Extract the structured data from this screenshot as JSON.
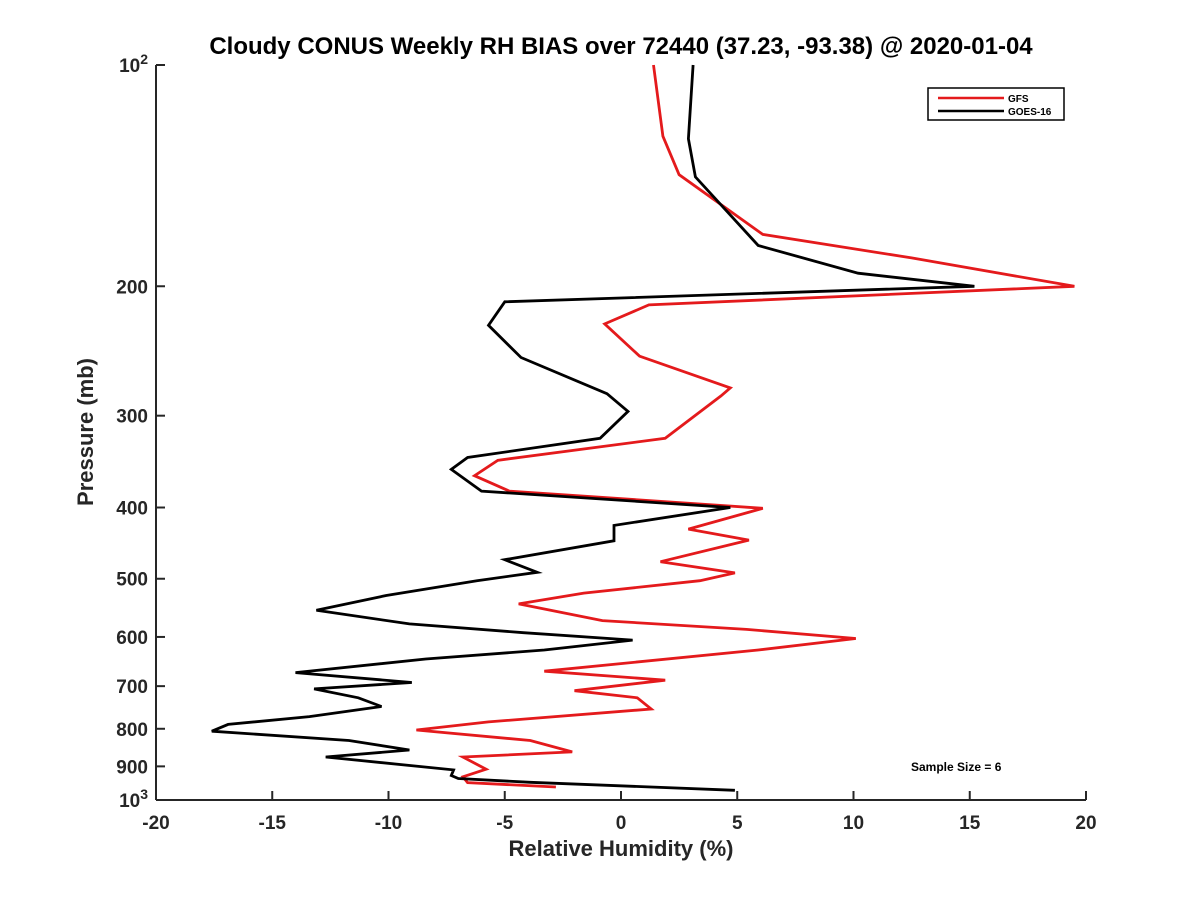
{
  "chart_data": {
    "type": "line",
    "title": "Cloudy CONUS Weekly RH BIAS over 72440 (37.23, -93.38) @ 2020-01-04",
    "xlabel": "Relative Humidity (%)",
    "ylabel": "Pressure (mb)",
    "xlim": [
      -20,
      20
    ],
    "ylim": [
      100,
      1000
    ],
    "y_scale": "log",
    "y_reversed": true,
    "grid": false,
    "legend_position": "top-right",
    "x_ticks": [
      "-20",
      "-15",
      "-10",
      "-5",
      "0",
      "5",
      "10",
      "15",
      "20"
    ],
    "x_tick_values": [
      -20,
      -15,
      -10,
      -5,
      0,
      5,
      10,
      15,
      20
    ],
    "y_ticks": [
      {
        "value": 100,
        "base": "10",
        "exp": "2"
      },
      {
        "value": 200,
        "label": "200"
      },
      {
        "value": 300,
        "label": "300"
      },
      {
        "value": 400,
        "label": "400"
      },
      {
        "value": 500,
        "label": "500"
      },
      {
        "value": 600,
        "label": "600"
      },
      {
        "value": 700,
        "label": "700"
      },
      {
        "value": 800,
        "label": "800"
      },
      {
        "value": 900,
        "label": "900"
      },
      {
        "value": 1000,
        "base": "10",
        "exp": "3"
      }
    ],
    "annotation": "Sample Size = 6",
    "series": [
      {
        "name": "GFS",
        "color": "#e41a1c",
        "points": [
          [
            1.4,
            100
          ],
          [
            1.8,
            125
          ],
          [
            2.5,
            141
          ],
          [
            6.1,
            170
          ],
          [
            12.5,
            183
          ],
          [
            19.5,
            200
          ],
          [
            1.2,
            212
          ],
          [
            -0.7,
            225
          ],
          [
            0.8,
            249
          ],
          [
            4.7,
            275
          ],
          [
            4.3,
            282
          ],
          [
            1.9,
            322
          ],
          [
            -5.3,
            345
          ],
          [
            -6.3,
            362
          ],
          [
            -4.8,
            380
          ],
          [
            6.1,
            401
          ],
          [
            2.9,
            428
          ],
          [
            5.5,
            443
          ],
          [
            1.7,
            474
          ],
          [
            4.9,
            491
          ],
          [
            3.4,
            503
          ],
          [
            -1.6,
            523
          ],
          [
            -4.4,
            541
          ],
          [
            -0.8,
            570
          ],
          [
            5.4,
            586
          ],
          [
            10.1,
            603
          ],
          [
            5.9,
            625
          ],
          [
            -3.3,
            668
          ],
          [
            1.9,
            687
          ],
          [
            -2.0,
            710
          ],
          [
            0.7,
            726
          ],
          [
            1.3,
            752
          ],
          [
            -5.7,
            783
          ],
          [
            -8.8,
            803
          ],
          [
            -3.9,
            830
          ],
          [
            -2.1,
            860
          ],
          [
            -6.8,
            874
          ],
          [
            -5.8,
            908
          ],
          [
            -6.8,
            930
          ],
          [
            -6.6,
            947
          ],
          [
            -2.8,
            960
          ]
        ]
      },
      {
        "name": "GOES-16",
        "color": "#000000",
        "points": [
          [
            3.1,
            100
          ],
          [
            2.9,
            126
          ],
          [
            3.2,
            142
          ],
          [
            5.9,
            176
          ],
          [
            10.2,
            192
          ],
          [
            15.2,
            200
          ],
          [
            -5.0,
            210
          ],
          [
            -5.7,
            226
          ],
          [
            -4.3,
            250
          ],
          [
            -0.6,
            280
          ],
          [
            0.3,
            296
          ],
          [
            -0.9,
            322
          ],
          [
            -6.6,
            342
          ],
          [
            -7.3,
            355
          ],
          [
            -6.0,
            380
          ],
          [
            4.7,
            400
          ],
          [
            -0.3,
            423
          ],
          [
            -0.3,
            444
          ],
          [
            -5.0,
            471
          ],
          [
            -3.6,
            490
          ],
          [
            -6.2,
            503
          ],
          [
            -10.1,
            527
          ],
          [
            -13.1,
            552
          ],
          [
            -9.1,
            576
          ],
          [
            -4.2,
            592
          ],
          [
            0.5,
            606
          ],
          [
            -3.3,
            625
          ],
          [
            -8.4,
            643
          ],
          [
            -14.0,
            671
          ],
          [
            -9.0,
            692
          ],
          [
            -13.2,
            706
          ],
          [
            -11.3,
            726
          ],
          [
            -10.3,
            746
          ],
          [
            -13.4,
            770
          ],
          [
            -16.9,
            789
          ],
          [
            -17.6,
            806
          ],
          [
            -11.7,
            830
          ],
          [
            -9.1,
            855
          ],
          [
            -12.7,
            874
          ],
          [
            -7.2,
            910
          ],
          [
            -7.3,
            926
          ],
          [
            -7.0,
            935
          ],
          [
            -3.9,
            946
          ],
          [
            4.9,
            970
          ]
        ]
      }
    ]
  }
}
